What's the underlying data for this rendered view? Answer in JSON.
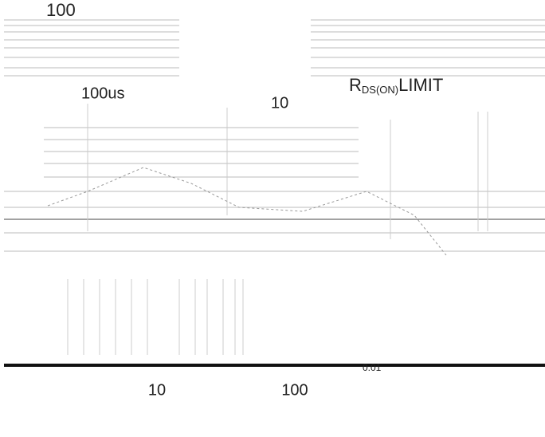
{
  "labels": {
    "y_top": "100",
    "pulse_100us": "100us",
    "pulse_10": "10",
    "rds_on_r": "R",
    "rds_on_sub": "DS(ON)",
    "rds_on_limit": "LIMIT",
    "inner_value": "0.01",
    "x_labels": [
      "10",
      "100"
    ]
  }
}
